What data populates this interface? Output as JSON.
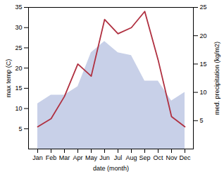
{
  "chart_data": {
    "type": "line",
    "xlabel": "date (month)",
    "ylabel": "max temp (C)",
    "y2label": "med. precipitation (kg/m2)",
    "categories": [
      "Jan",
      "Feb",
      "Mar",
      "Apr",
      "May",
      "Jun",
      "Jul",
      "Aug",
      "Sep",
      "Oct",
      "Nov",
      "Dec"
    ],
    "series": [
      {
        "type": "area",
        "axis": "y2",
        "color": "#c8d0e8",
        "values": [
          8.0,
          9.5,
          9.5,
          11.0,
          17.0,
          19.0,
          17.0,
          16.5,
          12.0,
          12.0,
          8.5,
          10.0
        ]
      },
      {
        "type": "line",
        "color": "#b03040",
        "values": [
          5.5,
          7.5,
          13.0,
          21.0,
          18.0,
          32.0,
          28.5,
          30.0,
          34.0,
          22.0,
          8.0,
          5.5
        ]
      }
    ],
    "ylim": [
      0,
      35
    ],
    "yticks": [
      5,
      10,
      15,
      20,
      25,
      30,
      35
    ],
    "y2lim": [
      0,
      25
    ],
    "y2ticks": [
      5,
      10,
      15,
      20,
      25
    ]
  }
}
